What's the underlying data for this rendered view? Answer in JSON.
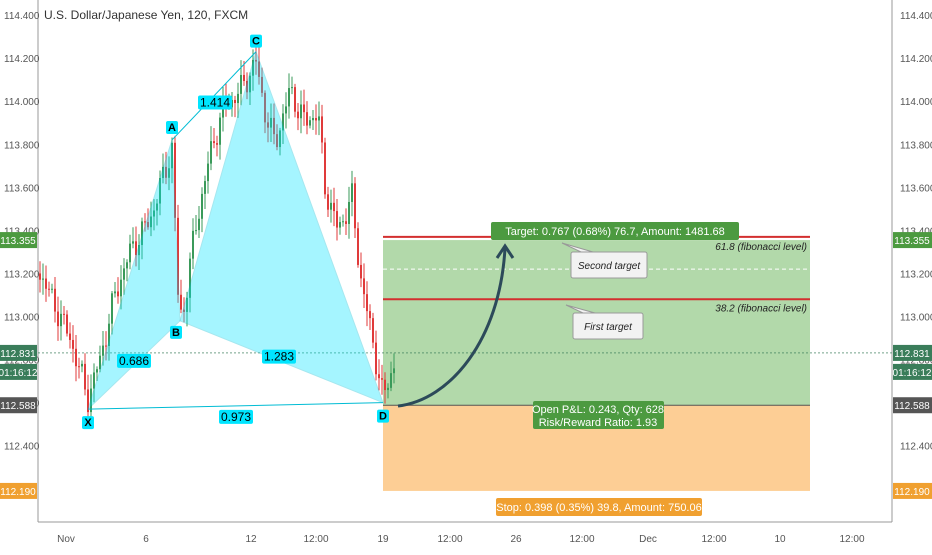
{
  "chart_data": {
    "type": "candlestick",
    "title": "U.S. Dollar/Japanese Yen, 120, FXCM",
    "y_axis": {
      "ticks": [
        "114.400",
        "114.200",
        "114.000",
        "113.800",
        "113.600",
        "113.400",
        "113.200",
        "113.000",
        "112.800",
        "112.600",
        "112.400"
      ],
      "range": [
        112.12,
        114.47
      ]
    },
    "x_axis": {
      "ticks": [
        "Nov",
        "6",
        "12",
        "12:00",
        "19",
        "12:00",
        "26",
        "12:00",
        "Dec",
        "12:00",
        "10",
        "12:00"
      ]
    },
    "price_tags": [
      {
        "key": "target",
        "label": "113.355",
        "value": 113.355,
        "color": "#4c9a40"
      },
      {
        "key": "last",
        "label": "112.831",
        "value": 112.831,
        "color": "#3a7d5a"
      },
      {
        "key": "countdown",
        "label": "01:16:12",
        "value": 112.75,
        "color": "#3a7d5a"
      },
      {
        "key": "entry",
        "label": "112.588",
        "value": 112.588,
        "color": "#555555"
      },
      {
        "key": "stop",
        "label": "112.190",
        "value": 112.19,
        "color": "#f0a030"
      }
    ],
    "pattern": {
      "type": "bat",
      "points": [
        {
          "label": "X",
          "x": "Nov 2",
          "y": 112.57
        },
        {
          "label": "A",
          "x": "Nov 7",
          "y": 113.82
        },
        {
          "label": "B",
          "x": "Nov 8",
          "y": 112.98
        },
        {
          "label": "C",
          "x": "Nov 12",
          "y": 114.23
        },
        {
          "label": "D",
          "x": "Nov 19",
          "y": 112.6
        }
      ],
      "ratios": [
        "1.414",
        "0.686",
        "1.283",
        "0.973"
      ]
    },
    "trade": {
      "target_label": "Target: 0.767 (0.68%) 76.7, Amount: 1481.68",
      "stop_label": "Stop: 0.398 (0.35%) 39.8, Amount: 750.06",
      "pnl_label": "Open P&L: 0.243, Qty: 628",
      "rr_label": "Risk/Reward Ratio: 1.93",
      "entry": 112.588,
      "target": 113.355,
      "stop": 112.19
    },
    "annotations": {
      "fib_618": "61.8 (fibonacci level)",
      "fib_382": "38.2 (fibonacci level)",
      "second_target": "Second target",
      "first_target": "First target"
    },
    "colors": {
      "bull": "#3a9a5a",
      "bear": "#e03a3a",
      "pattern_fill": "#00e5ff",
      "target_zone": "#a5d29b",
      "stop_zone": "#fdc98a",
      "fib_line": "#d32f2f"
    }
  }
}
